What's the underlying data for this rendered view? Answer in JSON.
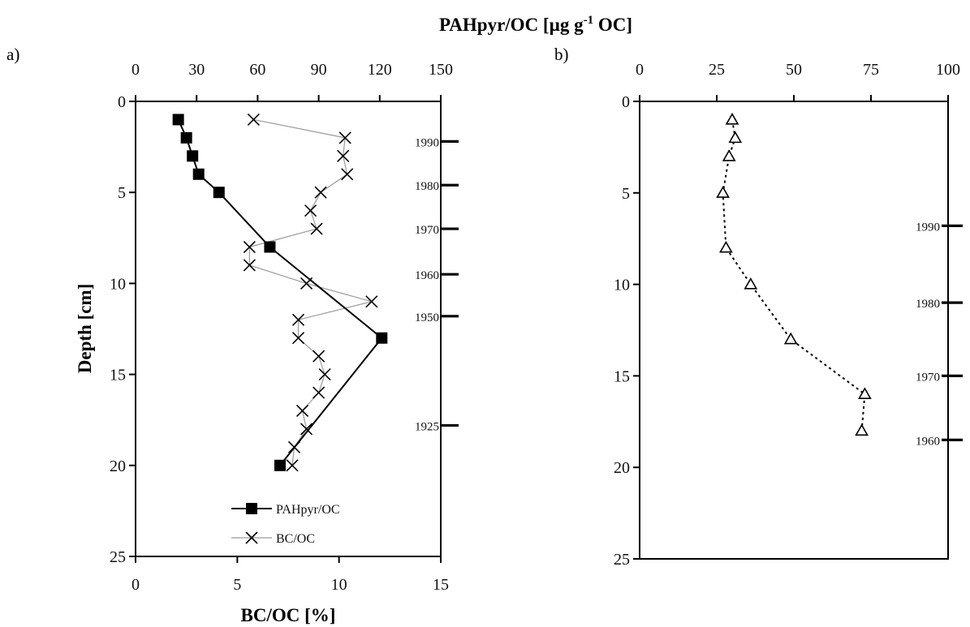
{
  "chart_data": [
    {
      "type": "scatter",
      "panel_label": "a)",
      "title": "PAHpyr/OC [µg g⁻¹ OC]",
      "title_main": "PAHpyr/OC [µg g",
      "title_sup": "-1",
      "title_tail": " OC]",
      "ylabel": "Depth [cm]",
      "xlabel": "BC/OC [%]",
      "ylim": [
        0,
        25
      ],
      "y_inverted": true,
      "yticks": [
        "0",
        "5",
        "10",
        "15",
        "20",
        "25"
      ],
      "x_top_lim": [
        0,
        150
      ],
      "x_top_ticks": [
        "0",
        "30",
        "60",
        "90",
        "120",
        "150"
      ],
      "x_bottom_lim": [
        0,
        15
      ],
      "x_bottom_ticks": [
        "0",
        "5",
        "10",
        "15"
      ],
      "legend_placement": "bottom-center",
      "series": [
        {
          "name": "PAHpyr/OC",
          "axis": "top",
          "marker": "filled-square",
          "line": "solid-black",
          "depth": [
            1,
            2,
            3,
            4,
            5,
            8,
            13,
            20
          ],
          "values": [
            21,
            25,
            28,
            31,
            41,
            66,
            121,
            71
          ]
        },
        {
          "name": "BC/OC",
          "axis": "bottom",
          "marker": "x",
          "line": "solid-gray",
          "depth": [
            1,
            2,
            3,
            4,
            5,
            6,
            7,
            8,
            9,
            10,
            11,
            12,
            13,
            14,
            15,
            16,
            17,
            18,
            19,
            20
          ],
          "values": [
            5.8,
            10.3,
            10.2,
            10.4,
            9.1,
            8.6,
            8.9,
            5.6,
            5.6,
            8.4,
            11.6,
            8.0,
            8.0,
            9.0,
            9.3,
            9.0,
            8.2,
            8.4,
            7.8,
            7.7
          ]
        }
      ],
      "year_markers": [
        {
          "year": "1990",
          "depth": 2.2
        },
        {
          "year": "1980",
          "depth": 4.6
        },
        {
          "year": "1970",
          "depth": 7.0
        },
        {
          "year": "1960",
          "depth": 9.5
        },
        {
          "year": "1950",
          "depth": 11.8
        },
        {
          "year": "1925",
          "depth": 17.8
        }
      ]
    },
    {
      "type": "scatter",
      "panel_label": "b)",
      "ylim": [
        0,
        25
      ],
      "y_inverted": true,
      "yticks": [
        "0",
        "5",
        "10",
        "15",
        "20",
        "25"
      ],
      "x_top_lim": [
        0,
        100
      ],
      "x_top_ticks": [
        "0",
        "25",
        "50",
        "75",
        "100"
      ],
      "series": [
        {
          "axis": "top",
          "marker": "open-triangle",
          "line": "dotted-black",
          "depth": [
            1,
            2,
            3,
            5,
            8,
            10,
            13,
            16,
            18
          ],
          "values": [
            30,
            31,
            29,
            27,
            28,
            36,
            49,
            73,
            72
          ]
        }
      ],
      "year_markers": [
        {
          "year": "1990",
          "depth": 6.8
        },
        {
          "year": "1980",
          "depth": 11.0
        },
        {
          "year": "1970",
          "depth": 15.0
        },
        {
          "year": "1960",
          "depth": 18.5
        }
      ]
    }
  ]
}
